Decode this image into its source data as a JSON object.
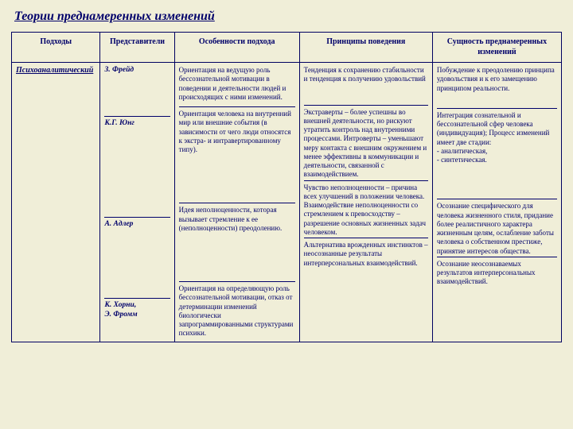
{
  "title": "Теории преднамеренных изменений",
  "headers": {
    "c0": "Подходы",
    "c1": "Представители",
    "c2": "Особенности подхода",
    "c3": "Принципы поведения",
    "c4": "Сущность преднамеренных изменений"
  },
  "approach": "Психоаналитический",
  "rows": [
    {
      "rep": "З. Фрейд",
      "feat": "Ориентация на ведущую роль бессознательной мотивации в поведении и деятельности людей и происходящих с ними изменений.",
      "prin": "Тенденция к сохранению стабильности и тенденция к получению удовольствий",
      "ess": "Побуждение к преодолению принципа удовольствия и к его замещению принципом реальности."
    },
    {
      "rep": "К.Г. Юнг",
      "feat": "Ориентация человека на внутренний мир или внешние события (в зависимости от чего люди относятся к экстра- и интравертированному типу).",
      "prin": "Экстраверты – более успешны во внешней деятельности, но рискуют утратить контроль над внутренними процессами. Интроверты – уменьшают меру контакта с внешним окружением и менее эффективны в коммуникации и деятельности, связанной с взаимодействием.",
      "ess": "Интеграция сознательной и бессознательной сфер человека (индивидуация); Процесс изменений имеет две стадии:\n- аналитическая,\n- синтетическая."
    },
    {
      "rep": "А. Адлер",
      "feat": "Идея неполноценности, которая вызывает стремление к ее (неполноценности) преодолению.",
      "prin": "Чувство неполноценности – причина всех улучшений в положении человека. Взаимодействие неполноценности со стремлением к превосходству – разрешение основных жизненных задач человеком.",
      "ess": "Осознание специфического для человека жизненного стиля, придание более реалистичного характера жизненным целям, ослабление заботы человека о собственном престиже, принятие интересов общества."
    },
    {
      "rep": "К. Хорни,\nЭ. Фромм",
      "feat": "Ориентация на определяющую роль бессознательной мотивации, отказ от детерминации изменений биологически запрограммированными структурами психики.",
      "prin": "Альтернатива врожденных инстинктов – неосознанные результаты интерперсональных взаимодействий.",
      "ess": "Осознание неосознаваемых результатов интерперсональных взаимодействий."
    }
  ]
}
